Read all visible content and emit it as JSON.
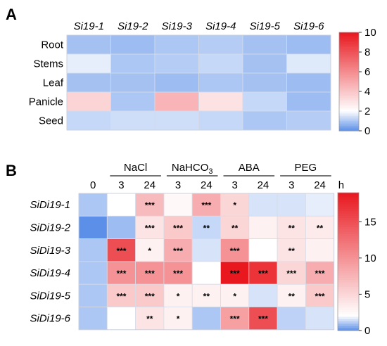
{
  "chart_data": [
    {
      "type": "heatmap",
      "panel": "A",
      "columns": [
        "Si19-1",
        "Si19-2",
        "Si19-3",
        "Si19-4",
        "Si19-5",
        "Si19-6"
      ],
      "rows": [
        "Root",
        "Stems",
        "Leaf",
        "Panicle",
        "Seed"
      ],
      "values": [
        [
          0.9,
          0.8,
          1.0,
          1.1,
          0.9,
          0.8
        ],
        [
          1.7,
          1.0,
          1.1,
          1.3,
          0.9,
          1.6
        ],
        [
          0.9,
          0.9,
          0.8,
          1.0,
          0.9,
          0.8
        ],
        [
          3.5,
          1.0,
          4.6,
          3.0,
          1.3,
          0.8
        ],
        [
          1.3,
          1.4,
          1.4,
          1.3,
          1.0,
          1.1
        ]
      ],
      "colorbar": {
        "ticks": [
          0,
          2,
          4,
          6,
          8,
          10
        ],
        "range": [
          0,
          10
        ],
        "low_color": "#5b8fe8",
        "mid_color": "#ffffff",
        "high_color": "#e8181e",
        "mid_value": 2
      }
    },
    {
      "type": "heatmap",
      "panel": "B",
      "groups": [
        {
          "label": "NaCl"
        },
        {
          "label": "NaHCO",
          "sub": "3"
        },
        {
          "label": "ABA"
        },
        {
          "label": "PEG"
        }
      ],
      "columns": [
        "0",
        "3",
        "24",
        "3",
        "24",
        "3",
        "24",
        "3",
        "24"
      ],
      "time_unit": "h",
      "rows": [
        "SiDi19-1",
        "SiDi19-2",
        "SiDi19-3",
        "SiDi19-4",
        "SiDi19-5",
        "SiDi19-6"
      ],
      "values": [
        [
          1.0,
          2.0,
          7.0,
          2.5,
          8.0,
          5.0,
          1.5,
          1.5,
          1.7
        ],
        [
          0.0,
          0.8,
          4.0,
          6.0,
          1.3,
          5.0,
          3.0,
          4.0,
          3.5
        ],
        [
          1.0,
          15.0,
          3.0,
          8.0,
          1.5,
          10.0,
          2.0,
          4.0,
          3.0
        ],
        [
          1.0,
          10.0,
          10.0,
          10.0,
          2.0,
          19.0,
          17.0,
          5.0,
          8.0
        ],
        [
          1.0,
          6.0,
          6.0,
          3.0,
          3.0,
          3.0,
          1.5,
          3.0,
          6.0
        ],
        [
          1.0,
          2.0,
          4.0,
          3.0,
          1.0,
          9.0,
          15.0,
          1.2,
          1.5
        ]
      ],
      "significance": [
        [
          "",
          "",
          "***",
          "",
          "***",
          "*",
          "",
          "",
          ""
        ],
        [
          "",
          "",
          "***",
          "***",
          "**",
          "**",
          "",
          "**",
          "**"
        ],
        [
          "",
          "***",
          "*",
          "***",
          "",
          "***",
          "",
          "**",
          ""
        ],
        [
          "",
          "***",
          "***",
          "***",
          "",
          "***",
          "***",
          "***",
          "***"
        ],
        [
          "",
          "***",
          "***",
          "*",
          "**",
          "*",
          "",
          "**",
          "***"
        ],
        [
          "",
          "",
          "**",
          "*",
          "",
          "***",
          "***",
          "",
          ""
        ]
      ],
      "colorbar": {
        "ticks": [
          0,
          5,
          10,
          15
        ],
        "range": [
          0,
          19
        ],
        "low_color": "#5b8fe8",
        "mid_color": "#ffffff",
        "high_color": "#e8181e",
        "mid_value": 2
      }
    }
  ],
  "panel_labels": [
    "A",
    "B"
  ]
}
